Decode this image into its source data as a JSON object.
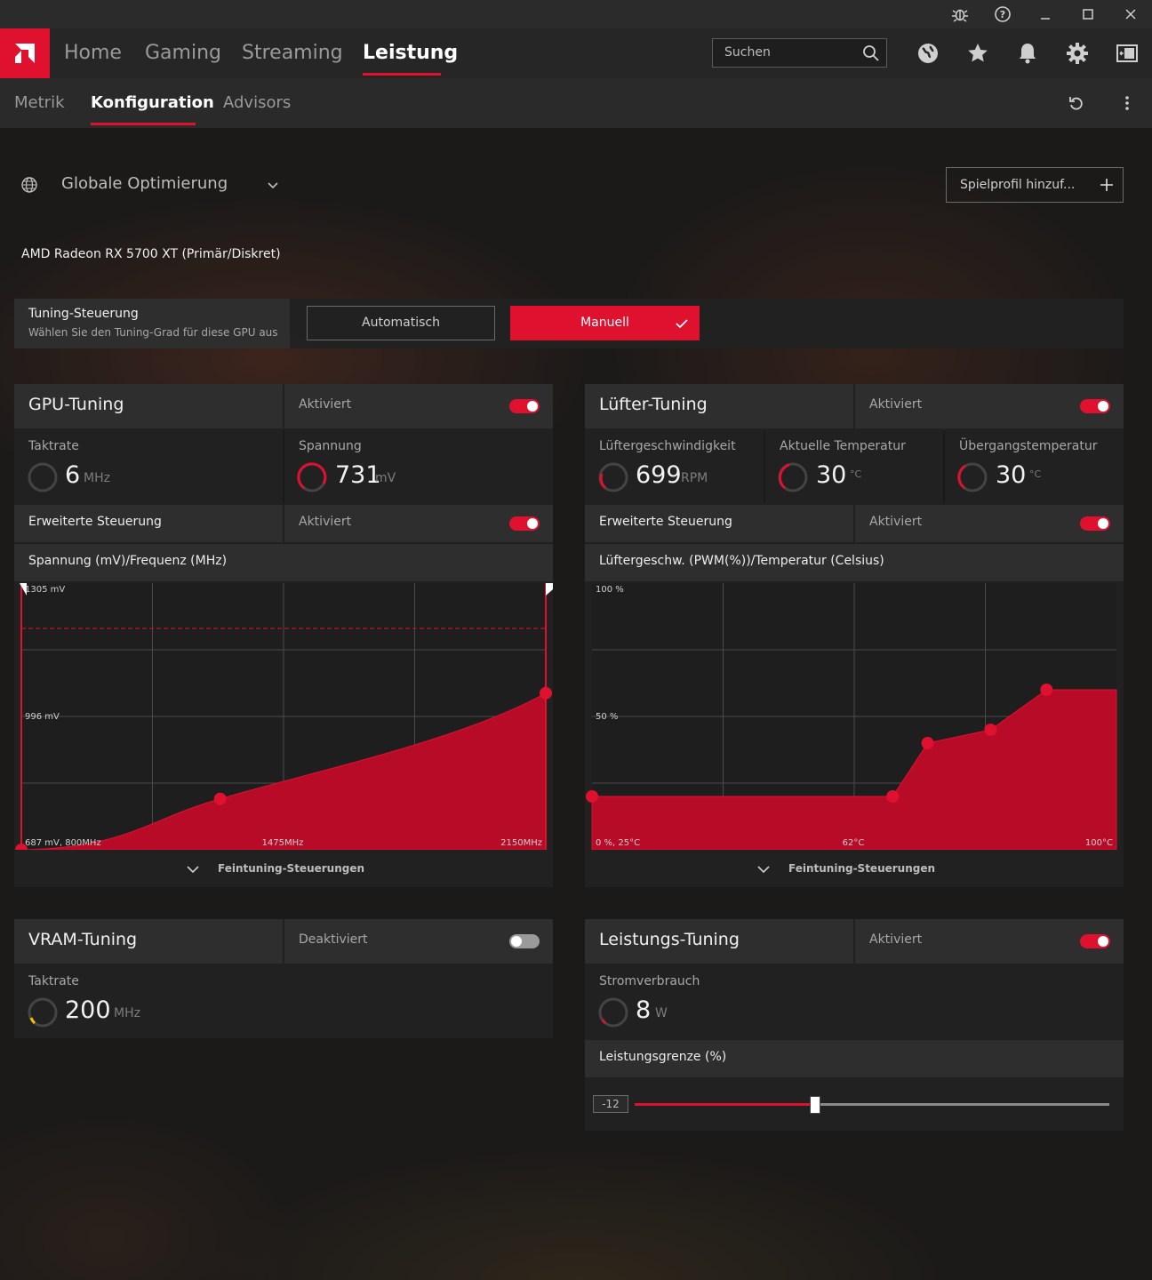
{
  "titlebar": {
    "icons": [
      "bug-icon",
      "help-icon",
      "minimize-icon",
      "maximize-icon",
      "close-icon"
    ]
  },
  "nav": {
    "tabs": [
      {
        "label": "Home"
      },
      {
        "label": "Gaming"
      },
      {
        "label": "Streaming"
      },
      {
        "label": "Leistung"
      }
    ],
    "active_tab": "Leistung",
    "search_placeholder": "Suchen",
    "icons": [
      "globe-icon",
      "star-icon",
      "bell-icon",
      "gear-icon",
      "sidebar-icon"
    ]
  },
  "subnav": {
    "tabs": [
      {
        "label": "Metrik"
      },
      {
        "label": "Konfiguration"
      },
      {
        "label": "Advisors"
      }
    ],
    "active_tab": "Konfiguration",
    "icons": [
      "reset-icon",
      "more-icon"
    ]
  },
  "profile": {
    "label": "Globale Optimierung",
    "add_button": "Spielprofil hinzuf..."
  },
  "gpu_name": "AMD Radeon RX 5700 XT (Primär/Diskret)",
  "tuning_control": {
    "title": "Tuning-Steuerung",
    "subtitle": "Wählen Sie den Tuning-Grad für diese GPU aus",
    "auto_label": "Automatisch",
    "manual_label": "Manuell",
    "selected": "Manuell"
  },
  "gpu_tuning": {
    "title": "GPU-Tuning",
    "status": "Aktiviert",
    "enabled": true,
    "clock_label": "Taktrate",
    "clock_value": "6",
    "clock_unit": "MHz",
    "voltage_label": "Spannung",
    "voltage_value": "731",
    "voltage_unit": "mV",
    "advanced_label": "Erweiterte Steuerung",
    "advanced_status": "Aktiviert",
    "chart_title": "Spannung (mV)/Frequenz (MHz)",
    "fine_tuning": "Feintuning-Steuerungen"
  },
  "fan_tuning": {
    "title": "Lüfter-Tuning",
    "status": "Aktiviert",
    "enabled": true,
    "speed_label": "Lüftergeschwindigkeit",
    "speed_value": "699",
    "speed_unit": "RPM",
    "temp_label": "Aktuelle Temperatur",
    "temp_value": "30",
    "temp_unit": "°C",
    "junction_label": "Übergangstemperatur",
    "junction_value": "30",
    "junction_unit": "°C",
    "advanced_label": "Erweiterte Steuerung",
    "advanced_status": "Aktiviert",
    "chart_title": "Lüftergeschw. (PWM(%))/Temperatur (Celsius)",
    "fine_tuning": "Feintuning-Steuerungen"
  },
  "vram_tuning": {
    "title": "VRAM-Tuning",
    "status": "Deaktiviert",
    "enabled": false,
    "clock_label": "Taktrate",
    "clock_value": "200",
    "clock_unit": "MHz"
  },
  "power_tuning": {
    "title": "Leistungs-Tuning",
    "status": "Aktiviert",
    "enabled": true,
    "power_label": "Stromverbrauch",
    "power_value": "8",
    "power_unit": "W",
    "limit_label": "Leistungsgrenze (%)",
    "limit_value": "-12",
    "slider_fraction": 0.38
  },
  "colors": {
    "accent": "#e0102f",
    "panel": "#222222",
    "header": "#2e2e2e"
  },
  "chart_data": [
    {
      "type": "area",
      "tick_labels": {
        "y_top": "1305 mV",
        "y_mid": "996 mV",
        "x_left": "687 mV, 800MHz",
        "x_mid": "1475MHz",
        "x_right": "2150MHz"
      },
      "x": [
        800,
        1312,
        2150
      ],
      "y": [
        687,
        805,
        1050
      ],
      "xlim": [
        800,
        2150
      ],
      "ylim": [
        687,
        1305
      ],
      "grid": true
    },
    {
      "type": "area",
      "tick_labels": {
        "y_top": "100 %",
        "y_mid": "50 %",
        "x_left": "0 %, 25°C",
        "x_mid": "62°C",
        "x_right": "100°C"
      },
      "x": [
        25,
        68,
        73,
        82,
        90
      ],
      "y": [
        20,
        20,
        40,
        45,
        60
      ],
      "xlim": [
        25,
        100
      ],
      "ylim": [
        0,
        100
      ],
      "grid": true
    }
  ]
}
